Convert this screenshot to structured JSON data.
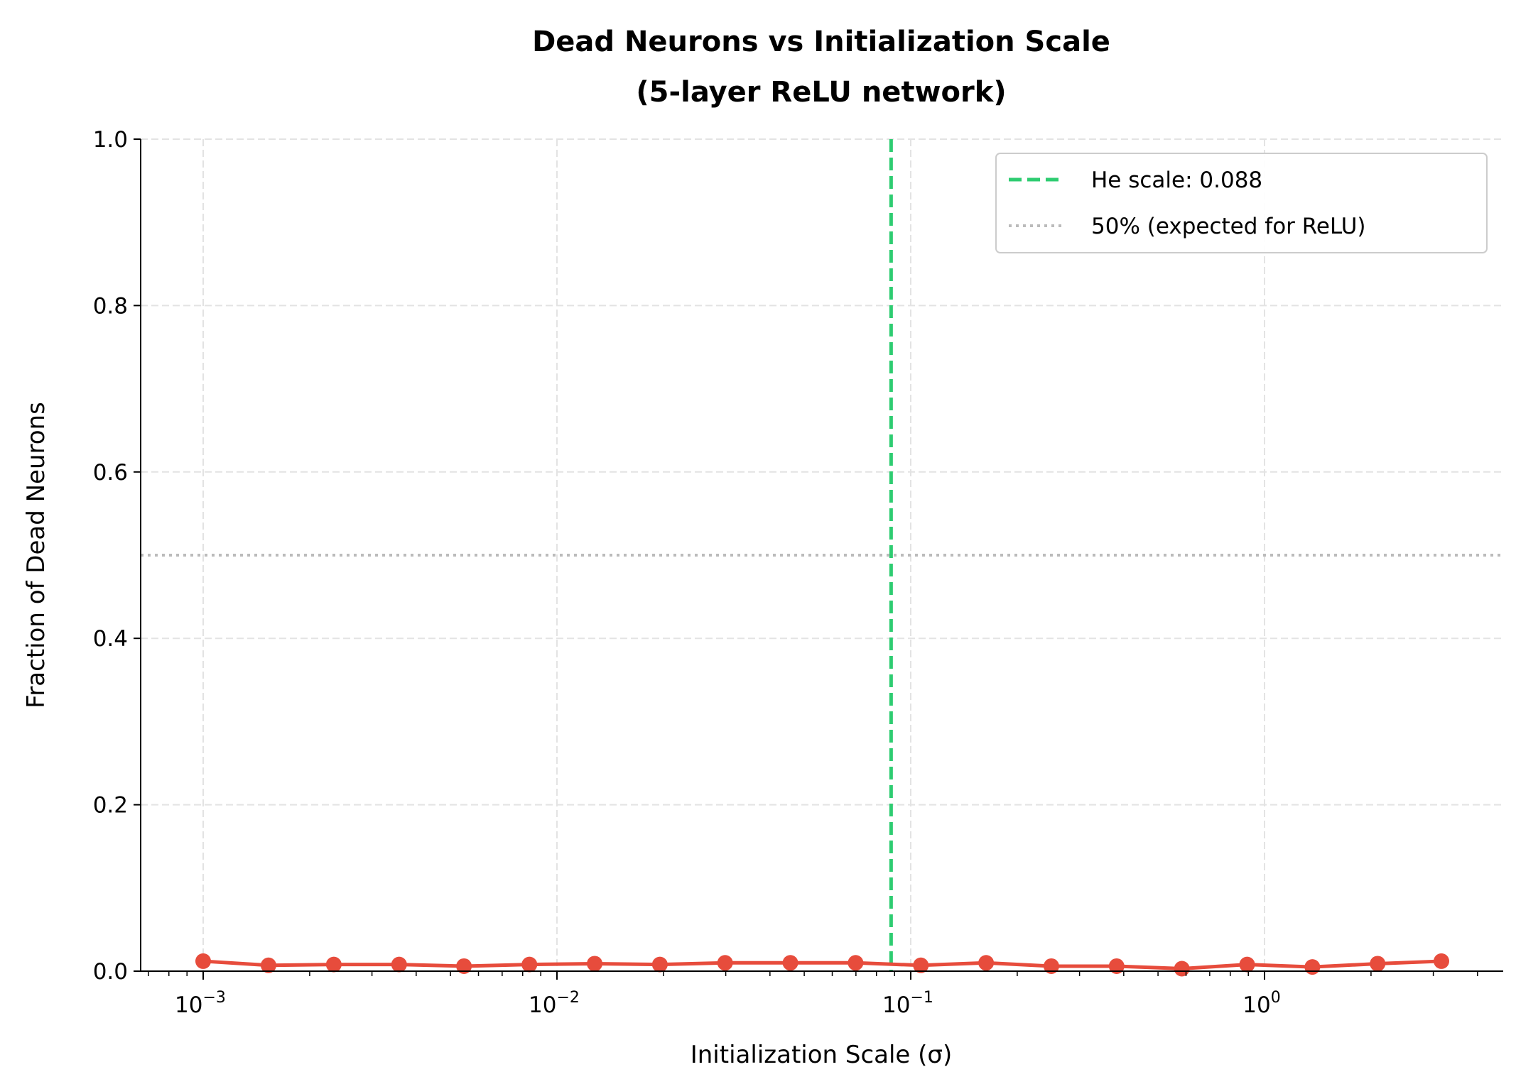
{
  "chart_data": {
    "type": "line",
    "title": "Dead Neurons vs Initialization Scale",
    "subtitle": "(5-layer ReLU network)",
    "xlabel": "Initialization Scale (σ)",
    "ylabel": "Fraction of Dead Neurons",
    "xscale": "log",
    "xlim": [
      0.00066,
      4.5
    ],
    "ylim": [
      0,
      1.0
    ],
    "grid": true,
    "legend_placement": "top-right",
    "x_ticks": [
      {
        "base": "10",
        "exp": "−3",
        "value": 0.001
      },
      {
        "base": "10",
        "exp": "−2",
        "value": 0.01
      },
      {
        "base": "10",
        "exp": "−1",
        "value": 0.1
      },
      {
        "base": "10",
        "exp": "0",
        "value": 1
      }
    ],
    "y_ticks": [
      "0.0",
      "0.2",
      "0.4",
      "0.6",
      "0.8",
      "1.0"
    ],
    "series": [
      {
        "color": "#e74c3c",
        "marker": "circle",
        "x": [
          0.001,
          0.00153,
          0.00234,
          0.00358,
          0.00546,
          0.00836,
          0.01278,
          0.01954,
          0.02987,
          0.04568,
          0.06985,
          0.10681,
          0.16332,
          0.24974,
          0.38189,
          0.58396,
          0.89297,
          1.36546,
          2.08796,
          3.16228
        ],
        "values": [
          0.012,
          0.007,
          0.008,
          0.008,
          0.006,
          0.008,
          0.009,
          0.008,
          0.01,
          0.01,
          0.01,
          0.007,
          0.01,
          0.006,
          0.006,
          0.003,
          0.008,
          0.005,
          0.009,
          0.012
        ]
      }
    ],
    "reference_lines": [
      {
        "orientation": "vertical",
        "value": 0.088,
        "label": "He scale: 0.088",
        "color": "#2ecc71",
        "style": "dashed"
      },
      {
        "orientation": "horizontal",
        "value": 0.5,
        "label": "50% (expected for ReLU)",
        "color": "#bbbbbb",
        "style": "dotted"
      }
    ]
  }
}
